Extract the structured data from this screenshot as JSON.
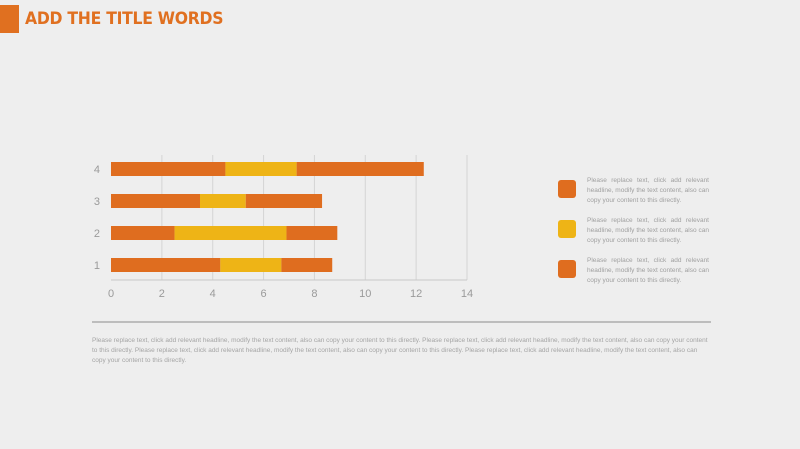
{
  "header": {
    "title": "ADD THE TITLE WORDS",
    "accent_color": "#e07020"
  },
  "chart_data": {
    "type": "bar",
    "orientation": "horizontal",
    "stacked": true,
    "categories": [
      "1",
      "2",
      "3",
      "4"
    ],
    "series": [
      {
        "values": [
          4.3,
          2.5,
          3.5,
          4.5
        ],
        "color": "#df6d1f"
      },
      {
        "values": [
          2.4,
          4.4,
          1.8,
          2.8
        ],
        "color": "#eeb416"
      },
      {
        "values": [
          2.0,
          2.0,
          3.0,
          5.0
        ],
        "color": "#df6d1f"
      }
    ],
    "xlim": [
      0,
      14
    ],
    "xticks": [
      "0",
      "2",
      "4",
      "6",
      "8",
      "10",
      "12",
      "14"
    ],
    "grid": "vertical",
    "legend": "right"
  },
  "legend": {
    "items": [
      {
        "text": "Please replace text, click add relevant headline, modify the text content, also can copy your content to this directly.",
        "color": "#df6d1f"
      },
      {
        "text": "Please replace text, click add relevant headline, modify the text content, also can copy your content to this directly.",
        "color": "#eeb416"
      },
      {
        "text": "Please replace text, click add relevant headline, modify the text content, also can copy your content to this directly.",
        "color": "#df6d1f"
      }
    ]
  },
  "body": {
    "text": "Please replace text, click add relevant headline, modify the text content, also can copy your content to this directly. Please replace text, click add relevant headline, modify the text content, also can copy your content to this directly. Please replace text, click add relevant headline, modify the text content, also can copy your content to this directly. Please replace text, click add relevant headline, modify the text content, also can copy your content to this directly."
  }
}
